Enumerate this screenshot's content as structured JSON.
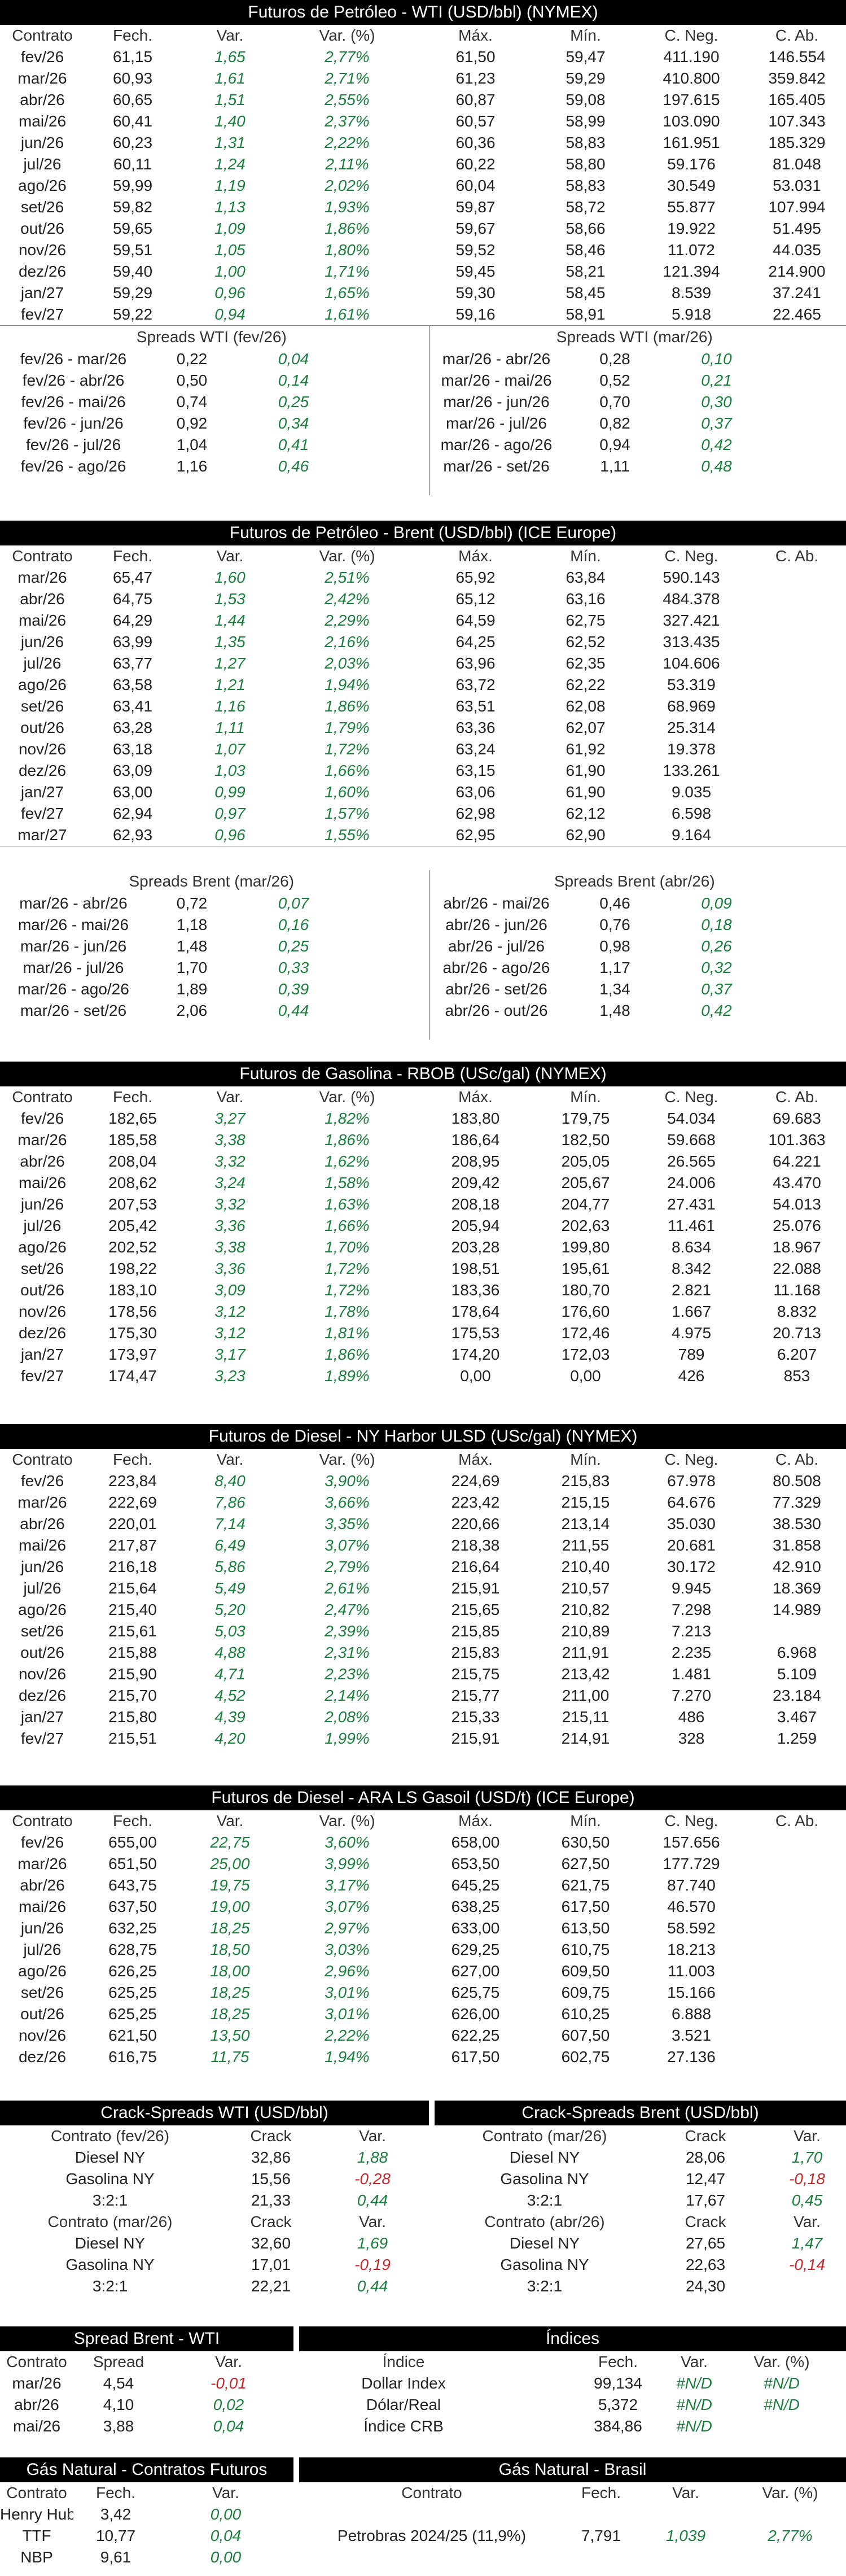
{
  "wti": {
    "title": "Futuros de Petróleo - WTI (USD/bbl) (NYMEX)",
    "headers": [
      "Contrato",
      "Fech.",
      "Var.",
      "Var. (%)",
      "Máx.",
      "Mín.",
      "C. Neg.",
      "C. Ab."
    ],
    "rows": [
      [
        "fev/26",
        "61,15",
        "1,65",
        "2,77%",
        "61,50",
        "59,47",
        "411.190",
        "146.554"
      ],
      [
        "mar/26",
        "60,93",
        "1,61",
        "2,71%",
        "61,23",
        "59,29",
        "410.800",
        "359.842"
      ],
      [
        "abr/26",
        "60,65",
        "1,51",
        "2,55%",
        "60,87",
        "59,08",
        "197.615",
        "165.405"
      ],
      [
        "mai/26",
        "60,41",
        "1,40",
        "2,37%",
        "60,57",
        "58,99",
        "103.090",
        "107.343"
      ],
      [
        "jun/26",
        "60,23",
        "1,31",
        "2,22%",
        "60,36",
        "58,83",
        "161.951",
        "185.329"
      ],
      [
        "jul/26",
        "60,11",
        "1,24",
        "2,11%",
        "60,22",
        "58,80",
        "59.176",
        "81.048"
      ],
      [
        "ago/26",
        "59,99",
        "1,19",
        "2,02%",
        "60,04",
        "58,83",
        "30.549",
        "53.031"
      ],
      [
        "set/26",
        "59,82",
        "1,13",
        "1,93%",
        "59,87",
        "58,72",
        "55.877",
        "107.994"
      ],
      [
        "out/26",
        "59,65",
        "1,09",
        "1,86%",
        "59,67",
        "58,66",
        "19.922",
        "51.495"
      ],
      [
        "nov/26",
        "59,51",
        "1,05",
        "1,80%",
        "59,52",
        "58,46",
        "11.072",
        "44.035"
      ],
      [
        "dez/26",
        "59,40",
        "1,00",
        "1,71%",
        "59,45",
        "58,21",
        "121.394",
        "214.900"
      ],
      [
        "jan/27",
        "59,29",
        "0,96",
        "1,65%",
        "59,30",
        "58,45",
        "8.539",
        "37.241"
      ],
      [
        "fev/27",
        "59,22",
        "0,94",
        "1,61%",
        "59,16",
        "58,91",
        "5.918",
        "22.465"
      ]
    ],
    "spreads_left_title": "Spreads WTI (fev/26)",
    "spreads_left": [
      [
        "fev/26 - mar/26",
        "0,22",
        "0,04"
      ],
      [
        "fev/26 - abr/26",
        "0,50",
        "0,14"
      ],
      [
        "fev/26 - mai/26",
        "0,74",
        "0,25"
      ],
      [
        "fev/26 - jun/26",
        "0,92",
        "0,34"
      ],
      [
        "fev/26 - jul/26",
        "1,04",
        "0,41"
      ],
      [
        "fev/26 - ago/26",
        "1,16",
        "0,46"
      ]
    ],
    "spreads_right_title": "Spreads WTI (mar/26)",
    "spreads_right": [
      [
        "mar/26 - abr/26",
        "0,28",
        "0,10"
      ],
      [
        "mar/26 - mai/26",
        "0,52",
        "0,21"
      ],
      [
        "mar/26 - jun/26",
        "0,70",
        "0,30"
      ],
      [
        "mar/26 - jul/26",
        "0,82",
        "0,37"
      ],
      [
        "mar/26 - ago/26",
        "0,94",
        "0,42"
      ],
      [
        "mar/26 - set/26",
        "1,11",
        "0,48"
      ]
    ]
  },
  "brent": {
    "title": "Futuros de Petróleo - Brent (USD/bbl) (ICE Europe)",
    "headers": [
      "Contrato",
      "Fech.",
      "Var.",
      "Var. (%)",
      "Máx.",
      "Mín.",
      "C. Neg.",
      "C. Ab."
    ],
    "rows": [
      [
        "mar/26",
        "65,47",
        "1,60",
        "2,51%",
        "65,92",
        "63,84",
        "590.143",
        ""
      ],
      [
        "abr/26",
        "64,75",
        "1,53",
        "2,42%",
        "65,12",
        "63,16",
        "484.378",
        ""
      ],
      [
        "mai/26",
        "64,29",
        "1,44",
        "2,29%",
        "64,59",
        "62,75",
        "327.421",
        ""
      ],
      [
        "jun/26",
        "63,99",
        "1,35",
        "2,16%",
        "64,25",
        "62,52",
        "313.435",
        ""
      ],
      [
        "jul/26",
        "63,77",
        "1,27",
        "2,03%",
        "63,96",
        "62,35",
        "104.606",
        ""
      ],
      [
        "ago/26",
        "63,58",
        "1,21",
        "1,94%",
        "63,72",
        "62,22",
        "53.319",
        ""
      ],
      [
        "set/26",
        "63,41",
        "1,16",
        "1,86%",
        "63,51",
        "62,08",
        "68.969",
        ""
      ],
      [
        "out/26",
        "63,28",
        "1,11",
        "1,79%",
        "63,36",
        "62,07",
        "25.314",
        ""
      ],
      [
        "nov/26",
        "63,18",
        "1,07",
        "1,72%",
        "63,24",
        "61,92",
        "19.378",
        ""
      ],
      [
        "dez/26",
        "63,09",
        "1,03",
        "1,66%",
        "63,15",
        "61,90",
        "133.261",
        ""
      ],
      [
        "jan/27",
        "63,00",
        "0,99",
        "1,60%",
        "63,06",
        "61,90",
        "9.035",
        ""
      ],
      [
        "fev/27",
        "62,94",
        "0,97",
        "1,57%",
        "62,98",
        "62,12",
        "6.598",
        ""
      ],
      [
        "mar/27",
        "62,93",
        "0,96",
        "1,55%",
        "62,95",
        "62,90",
        "9.164",
        ""
      ]
    ],
    "spreads_left_title": "Spreads Brent (mar/26)",
    "spreads_left": [
      [
        "mar/26 - abr/26",
        "0,72",
        "0,07"
      ],
      [
        "mar/26 - mai/26",
        "1,18",
        "0,16"
      ],
      [
        "mar/26 - jun/26",
        "1,48",
        "0,25"
      ],
      [
        "mar/26 - jul/26",
        "1,70",
        "0,33"
      ],
      [
        "mar/26 - ago/26",
        "1,89",
        "0,39"
      ],
      [
        "mar/26 - set/26",
        "2,06",
        "0,44"
      ]
    ],
    "spreads_right_title": "Spreads Brent (abr/26)",
    "spreads_right": [
      [
        "abr/26 - mai/26",
        "0,46",
        "0,09"
      ],
      [
        "abr/26 - jun/26",
        "0,76",
        "0,18"
      ],
      [
        "abr/26 - jul/26",
        "0,98",
        "0,26"
      ],
      [
        "abr/26 - ago/26",
        "1,17",
        "0,32"
      ],
      [
        "abr/26 - set/26",
        "1,34",
        "0,37"
      ],
      [
        "abr/26 - out/26",
        "1,48",
        "0,42"
      ]
    ]
  },
  "rbob": {
    "title": "Futuros de Gasolina - RBOB (USc/gal) (NYMEX)",
    "headers": [
      "Contrato",
      "Fech.",
      "Var.",
      "Var. (%)",
      "Máx.",
      "Mín.",
      "C. Neg.",
      "C. Ab."
    ],
    "rows": [
      [
        "fev/26",
        "182,65",
        "3,27",
        "1,82%",
        "183,80",
        "179,75",
        "54.034",
        "69.683"
      ],
      [
        "mar/26",
        "185,58",
        "3,38",
        "1,86%",
        "186,64",
        "182,50",
        "59.668",
        "101.363"
      ],
      [
        "abr/26",
        "208,04",
        "3,32",
        "1,62%",
        "208,95",
        "205,05",
        "26.565",
        "64.221"
      ],
      [
        "mai/26",
        "208,62",
        "3,24",
        "1,58%",
        "209,42",
        "205,67",
        "24.006",
        "43.470"
      ],
      [
        "jun/26",
        "207,53",
        "3,32",
        "1,63%",
        "208,18",
        "204,77",
        "27.431",
        "54.013"
      ],
      [
        "jul/26",
        "205,42",
        "3,36",
        "1,66%",
        "205,94",
        "202,63",
        "11.461",
        "25.076"
      ],
      [
        "ago/26",
        "202,52",
        "3,38",
        "1,70%",
        "203,28",
        "199,80",
        "8.634",
        "18.967"
      ],
      [
        "set/26",
        "198,22",
        "3,36",
        "1,72%",
        "198,51",
        "195,61",
        "8.342",
        "22.088"
      ],
      [
        "out/26",
        "183,10",
        "3,09",
        "1,72%",
        "183,36",
        "180,70",
        "2.821",
        "11.168"
      ],
      [
        "nov/26",
        "178,56",
        "3,12",
        "1,78%",
        "178,64",
        "176,60",
        "1.667",
        "8.832"
      ],
      [
        "dez/26",
        "175,30",
        "3,12",
        "1,81%",
        "175,53",
        "172,46",
        "4.975",
        "20.713"
      ],
      [
        "jan/27",
        "173,97",
        "3,17",
        "1,86%",
        "174,20",
        "172,03",
        "789",
        "6.207"
      ],
      [
        "fev/27",
        "174,47",
        "3,23",
        "1,89%",
        "0,00",
        "0,00",
        "426",
        "853"
      ]
    ]
  },
  "ulsd": {
    "title": "Futuros de Diesel - NY Harbor ULSD (USc/gal) (NYMEX)",
    "headers": [
      "Contrato",
      "Fech.",
      "Var.",
      "Var. (%)",
      "Máx.",
      "Mín.",
      "C. Neg.",
      "C. Ab."
    ],
    "rows": [
      [
        "fev/26",
        "223,84",
        "8,40",
        "3,90%",
        "224,69",
        "215,83",
        "67.978",
        "80.508"
      ],
      [
        "mar/26",
        "222,69",
        "7,86",
        "3,66%",
        "223,42",
        "215,15",
        "64.676",
        "77.329"
      ],
      [
        "abr/26",
        "220,01",
        "7,14",
        "3,35%",
        "220,66",
        "213,14",
        "35.030",
        "38.530"
      ],
      [
        "mai/26",
        "217,87",
        "6,49",
        "3,07%",
        "218,38",
        "211,55",
        "20.681",
        "31.858"
      ],
      [
        "jun/26",
        "216,18",
        "5,86",
        "2,79%",
        "216,64",
        "210,40",
        "30.172",
        "42.910"
      ],
      [
        "jul/26",
        "215,64",
        "5,49",
        "2,61%",
        "215,91",
        "210,57",
        "9.945",
        "18.369"
      ],
      [
        "ago/26",
        "215,40",
        "5,20",
        "2,47%",
        "215,65",
        "210,82",
        "7.298",
        "14.989"
      ],
      [
        "set/26",
        "215,61",
        "5,03",
        "2,39%",
        "215,85",
        "210,89",
        "7.213",
        ""
      ],
      [
        "out/26",
        "215,88",
        "4,88",
        "2,31%",
        "215,83",
        "211,91",
        "2.235",
        "6.968"
      ],
      [
        "nov/26",
        "215,90",
        "4,71",
        "2,23%",
        "215,75",
        "213,42",
        "1.481",
        "5.109"
      ],
      [
        "dez/26",
        "215,70",
        "4,52",
        "2,14%",
        "215,77",
        "211,00",
        "7.270",
        "23.184"
      ],
      [
        "jan/27",
        "215,80",
        "4,39",
        "2,08%",
        "215,33",
        "215,11",
        "486",
        "3.467"
      ],
      [
        "fev/27",
        "215,51",
        "4,20",
        "1,99%",
        "215,91",
        "214,91",
        "328",
        "1.259"
      ]
    ]
  },
  "gasoil": {
    "title": "Futuros de Diesel - ARA LS Gasoil (USD/t) (ICE Europe)",
    "headers": [
      "Contrato",
      "Fech.",
      "Var.",
      "Var. (%)",
      "Máx.",
      "Mín.",
      "C. Neg.",
      "C. Ab."
    ],
    "rows": [
      [
        "fev/26",
        "655,00",
        "22,75",
        "3,60%",
        "658,00",
        "630,50",
        "157.656",
        ""
      ],
      [
        "mar/26",
        "651,50",
        "25,00",
        "3,99%",
        "653,50",
        "627,50",
        "177.729",
        ""
      ],
      [
        "abr/26",
        "643,75",
        "19,75",
        "3,17%",
        "645,25",
        "621,75",
        "87.740",
        ""
      ],
      [
        "mai/26",
        "637,50",
        "19,00",
        "3,07%",
        "638,25",
        "617,50",
        "46.570",
        ""
      ],
      [
        "jun/26",
        "632,25",
        "18,25",
        "2,97%",
        "633,00",
        "613,50",
        "58.592",
        ""
      ],
      [
        "jul/26",
        "628,75",
        "18,50",
        "3,03%",
        "629,25",
        "610,75",
        "18.213",
        ""
      ],
      [
        "ago/26",
        "626,25",
        "18,00",
        "2,96%",
        "627,00",
        "609,50",
        "11.003",
        ""
      ],
      [
        "set/26",
        "625,25",
        "18,25",
        "3,01%",
        "625,75",
        "609,75",
        "15.166",
        ""
      ],
      [
        "out/26",
        "625,25",
        "18,25",
        "3,01%",
        "626,00",
        "610,25",
        "6.888",
        ""
      ],
      [
        "nov/26",
        "621,50",
        "13,50",
        "2,22%",
        "622,25",
        "607,50",
        "3.521",
        ""
      ],
      [
        "dez/26",
        "616,75",
        "11,75",
        "1,94%",
        "617,50",
        "602,75",
        "27.136",
        ""
      ]
    ]
  },
  "crack": {
    "left_title": "Crack-Spreads WTI (USD/bbl)",
    "right_title": "Crack-Spreads Brent (USD/bbl)",
    "left_blocks": [
      {
        "headers": [
          "Contrato (fev/26)",
          "Crack",
          "Var."
        ],
        "rows": [
          [
            "Diesel NY",
            "32,86",
            "1,88"
          ],
          [
            "Gasolina NY",
            "15,56",
            "-0,28"
          ],
          [
            "3:2:1",
            "21,33",
            "0,44"
          ]
        ]
      },
      {
        "headers": [
          "Contrato (mar/26)",
          "Crack",
          "Var."
        ],
        "rows": [
          [
            "Diesel NY",
            "32,60",
            "1,69"
          ],
          [
            "Gasolina NY",
            "17,01",
            "-0,19"
          ],
          [
            "3:2:1",
            "22,21",
            "0,44"
          ]
        ]
      }
    ],
    "right_blocks": [
      {
        "headers": [
          "Contrato (mar/26)",
          "Crack",
          "Var."
        ],
        "rows": [
          [
            "Diesel NY",
            "28,06",
            "1,70"
          ],
          [
            "Gasolina NY",
            "12,47",
            "-0,18"
          ],
          [
            "3:2:1",
            "17,67",
            "0,45"
          ]
        ]
      },
      {
        "headers": [
          "Contrato (abr/26)",
          "Crack",
          "Var."
        ],
        "rows": [
          [
            "Diesel NY",
            "27,65",
            "1,47"
          ],
          [
            "Gasolina NY",
            "22,63",
            "-0,14"
          ],
          [
            "3:2:1",
            "24,30",
            ""
          ]
        ]
      }
    ]
  },
  "brent_wti": {
    "title": "Spread Brent - WTI",
    "headers": [
      "Contrato",
      "Spread",
      "Var."
    ],
    "rows": [
      [
        "mar/26",
        "4,54",
        "-0,01"
      ],
      [
        "abr/26",
        "4,10",
        "0,02"
      ],
      [
        "mai/26",
        "3,88",
        "0,04"
      ]
    ]
  },
  "indices": {
    "title": "Índices",
    "headers": [
      "Índice",
      "Fech.",
      "Var.",
      "Var. (%)"
    ],
    "rows": [
      [
        "Dollar Index",
        "99,134",
        "#N/D",
        "#N/D"
      ],
      [
        "Dólar/Real",
        "5,372",
        "#N/D",
        "#N/D"
      ],
      [
        "Índice CRB",
        "384,86",
        "#N/D",
        ""
      ]
    ]
  },
  "gas_futures": {
    "title": "Gás Natural - Contratos Futuros",
    "headers": [
      "Contrato",
      "Fech.",
      "Var."
    ],
    "rows": [
      [
        "Henry Hub",
        "3,42",
        "0,00"
      ],
      [
        "TTF",
        "10,77",
        "0,04"
      ],
      [
        "NBP",
        "9,61",
        "0,00"
      ]
    ]
  },
  "gas_brasil": {
    "title": "Gás Natural - Brasil",
    "headers": [
      "Contrato",
      "Fech.",
      "Var.",
      "Var. (%)"
    ],
    "rows": [
      [
        "Petrobras 2024/25 (11,9%)",
        "7,791",
        "1,039",
        "2,77%"
      ]
    ]
  },
  "colors": {
    "positive": "#1a7f3c",
    "negative": "#c62828",
    "header_bg": "#000000"
  }
}
